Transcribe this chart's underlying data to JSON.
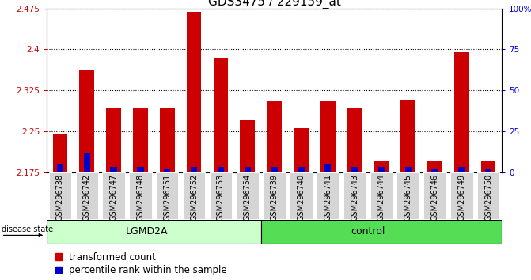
{
  "title": "GDS3475 / 229159_at",
  "samples": [
    "GSM296738",
    "GSM296742",
    "GSM296747",
    "GSM296748",
    "GSM296751",
    "GSM296752",
    "GSM296753",
    "GSM296754",
    "GSM296739",
    "GSM296740",
    "GSM296741",
    "GSM296743",
    "GSM296744",
    "GSM296745",
    "GSM296746",
    "GSM296749",
    "GSM296750"
  ],
  "transformed_count": [
    2.245,
    2.362,
    2.293,
    2.293,
    2.293,
    2.468,
    2.385,
    2.27,
    2.305,
    2.255,
    2.305,
    2.293,
    2.197,
    2.307,
    2.197,
    2.395,
    2.197
  ],
  "percentile_rank_pct": [
    5,
    12,
    3,
    3,
    2,
    3,
    3,
    3,
    3,
    3,
    5,
    3,
    3,
    3,
    2,
    3,
    2
  ],
  "lgmd2a_count": 8,
  "control_count": 9,
  "group_lgmd_color": "#ccffcc",
  "group_ctrl_color": "#55dd55",
  "bar_color": "#cc0000",
  "percentile_color": "#0000cc",
  "ymin": 2.175,
  "ymax": 2.475,
  "yticks": [
    2.175,
    2.25,
    2.325,
    2.4,
    2.475
  ],
  "right_ytick_pcts": [
    0,
    25,
    50,
    75,
    100
  ],
  "right_yticklabels": [
    "0",
    "25",
    "50",
    "75",
    "100%"
  ],
  "left_tick_color": "#cc0000",
  "right_tick_color": "#0000cc",
  "legend_red_label": "transformed count",
  "legend_blue_label": "percentile rank within the sample",
  "disease_state_label": "disease state",
  "title_fontsize": 11,
  "tick_fontsize": 7.5,
  "xtick_fontsize": 7.0,
  "legend_fontsize": 8.5
}
